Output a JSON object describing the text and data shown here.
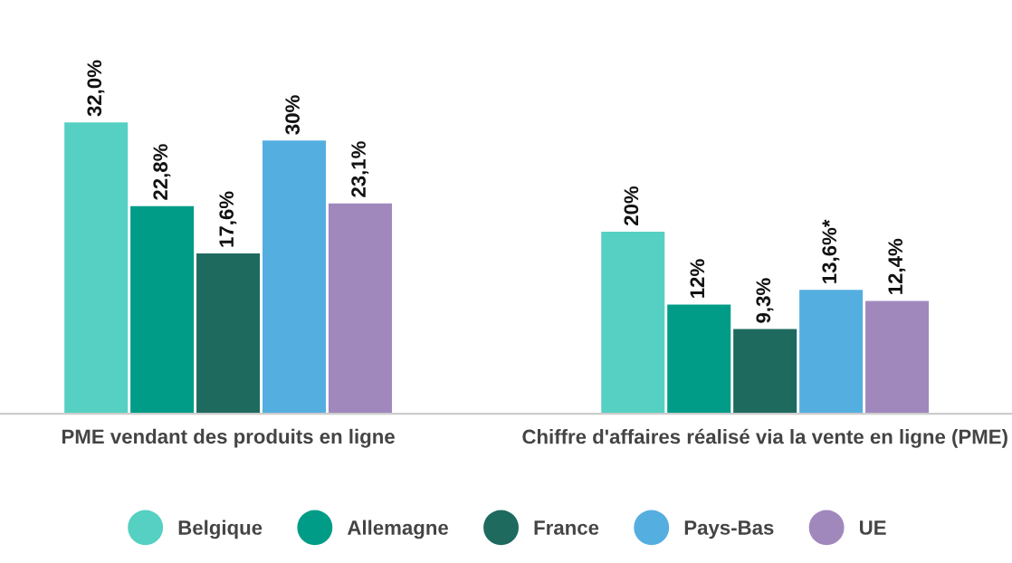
{
  "chart_data": {
    "type": "bar",
    "categories": [
      "PME vendant des produits en ligne",
      "Chiffre d'affaires réalisé via la vente en ligne (PME)"
    ],
    "series": [
      {
        "name": "Belgique",
        "color": "#55d0c2",
        "values": [
          32.0,
          20
        ],
        "value_labels": [
          "32,0%",
          "20%"
        ]
      },
      {
        "name": "Allemagne",
        "color": "#009c87",
        "values": [
          22.8,
          12
        ],
        "value_labels": [
          "22,8%",
          "12%"
        ]
      },
      {
        "name": "France",
        "color": "#1e6a5f",
        "values": [
          17.6,
          9.3
        ],
        "value_labels": [
          "17,6%",
          "9,3%"
        ]
      },
      {
        "name": "Pays-Bas",
        "color": "#55aee0",
        "values": [
          30,
          13.6
        ],
        "value_labels": [
          "30%",
          "13,6%*"
        ]
      },
      {
        "name": "UE",
        "color": "#a088bd",
        "values": [
          23.1,
          12.4
        ],
        "value_labels": [
          "23,1%",
          "12,4%"
        ]
      }
    ],
    "legend": "bottom",
    "marker": "circle"
  }
}
